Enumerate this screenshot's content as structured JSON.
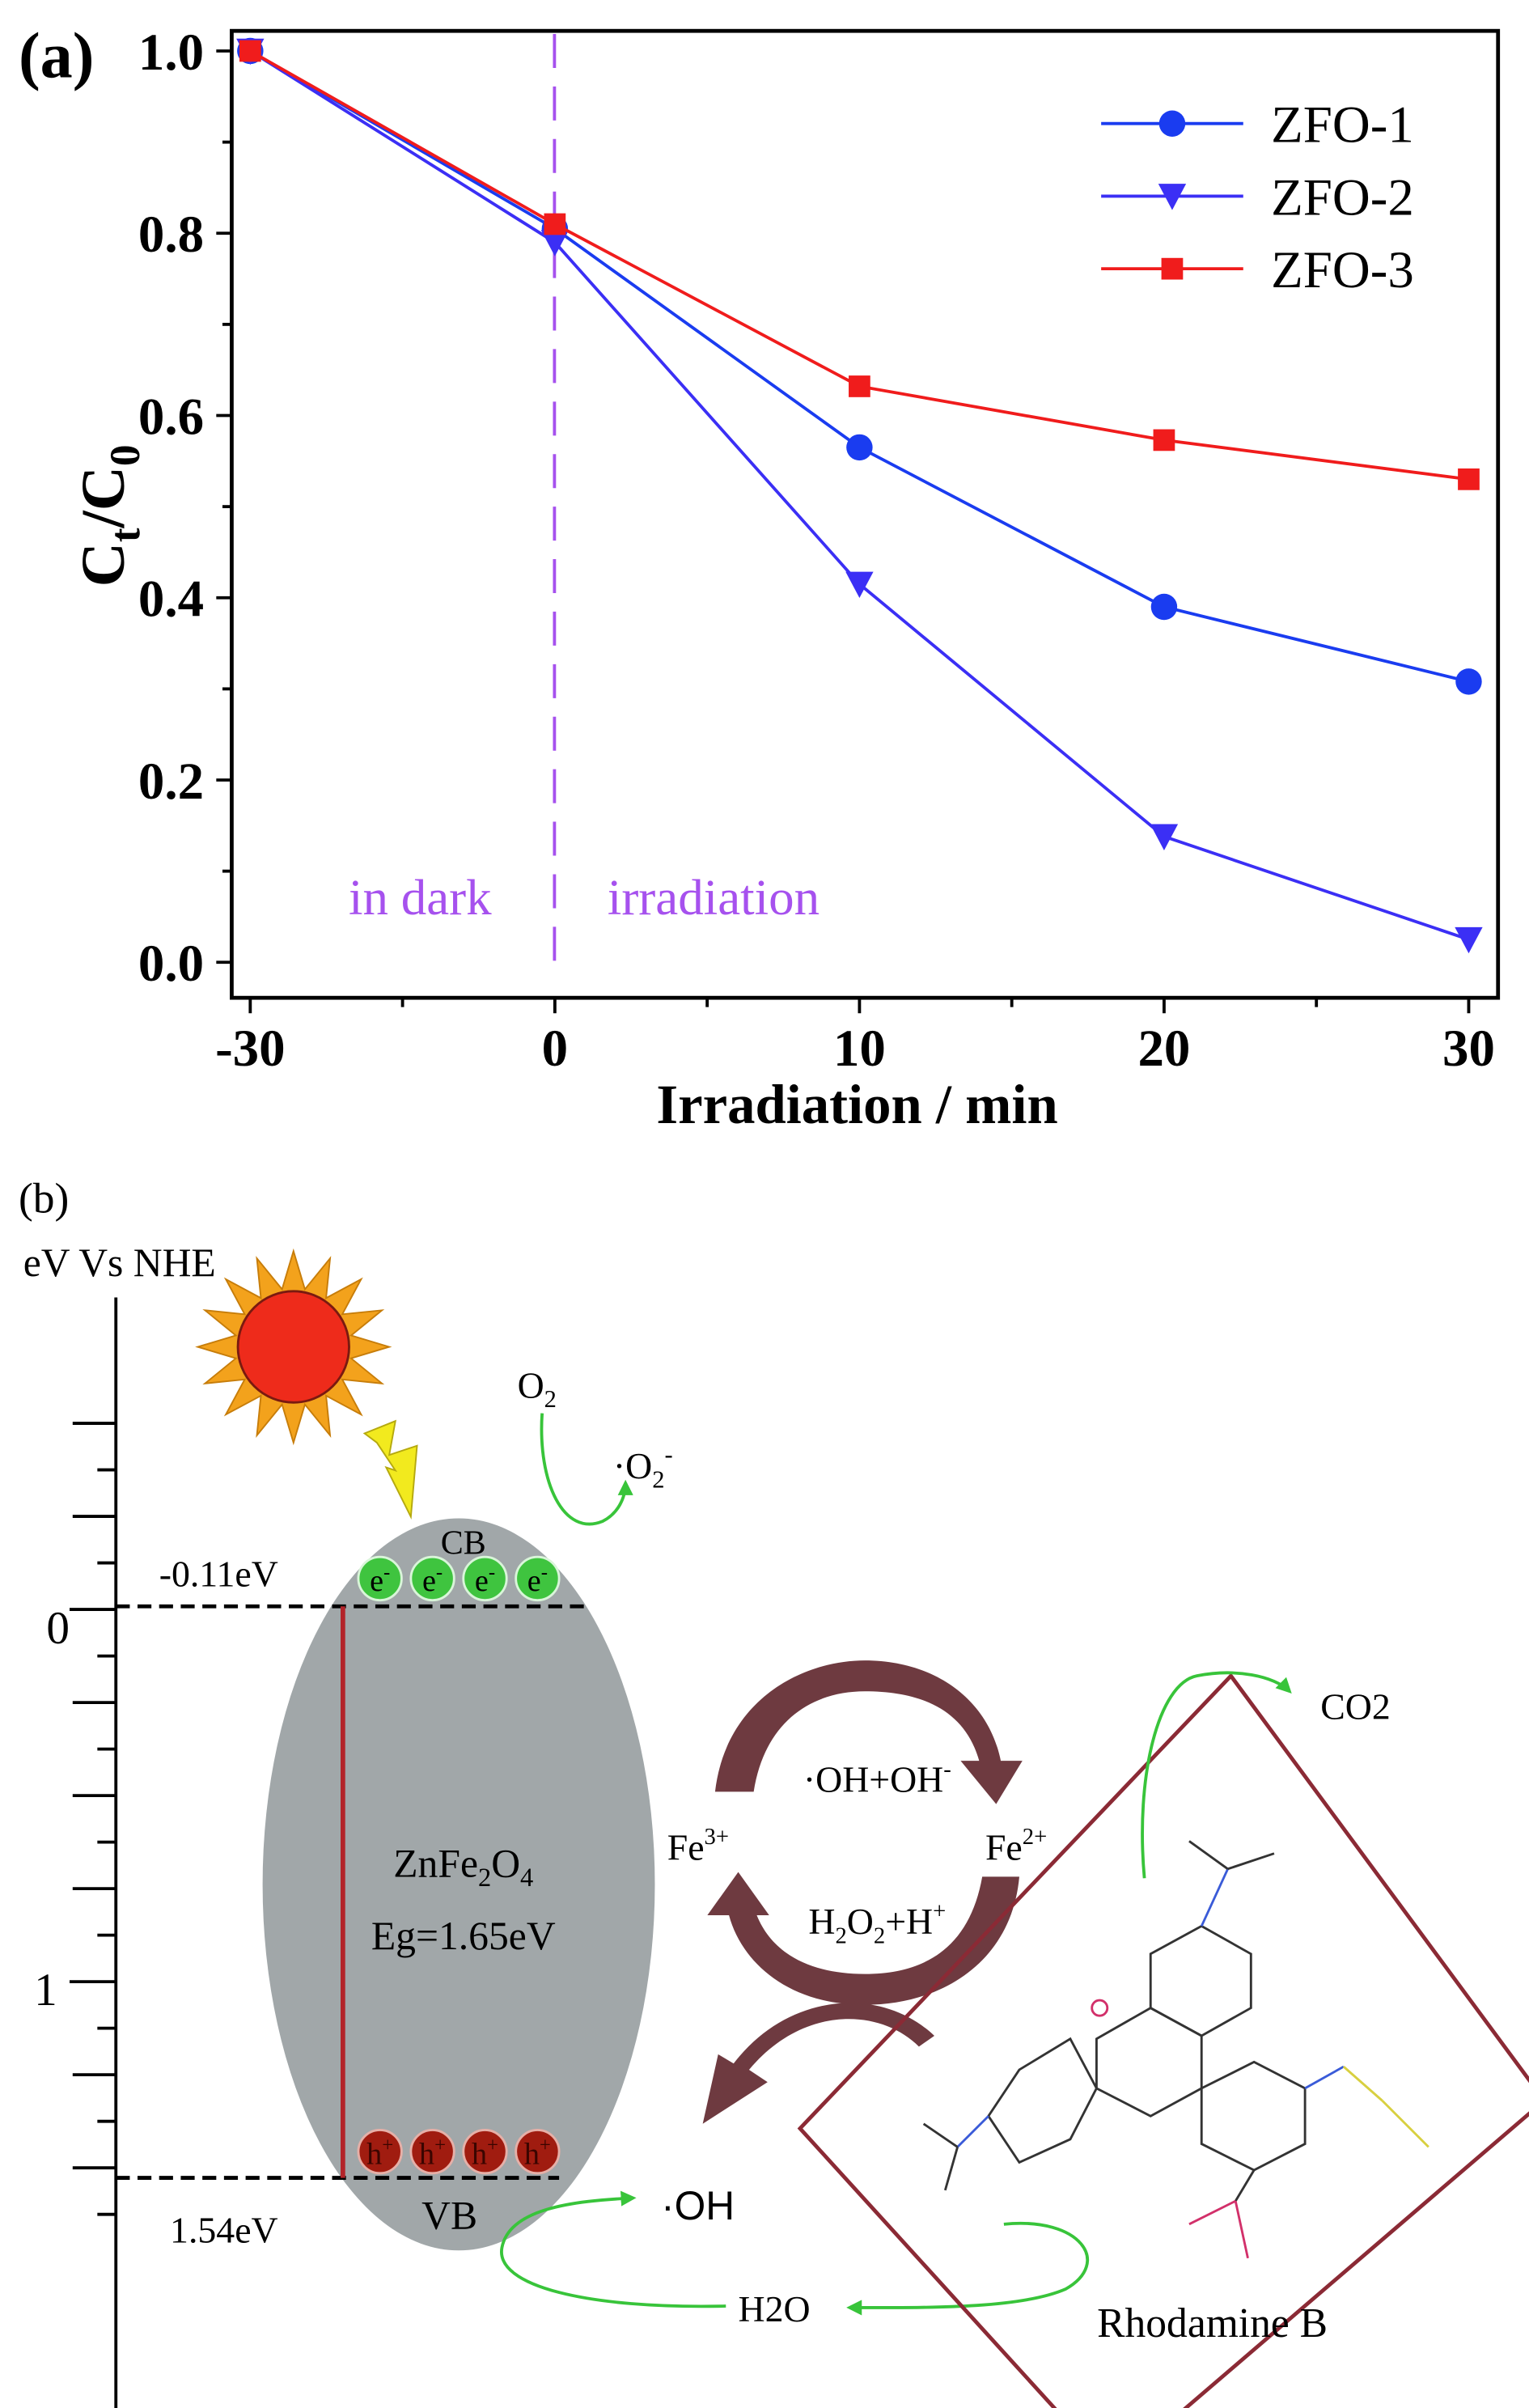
{
  "panel_a_label": "(a)",
  "panel_b_label": "(b)",
  "chart_data": {
    "type": "line",
    "title": "",
    "xlabel": "Irradiation / min",
    "ylabel_main": "C",
    "ylabel_sub1": "t",
    "ylabel_mid": "/C",
    "ylabel_sub2": "0",
    "x": [
      -30,
      0,
      10,
      20,
      30
    ],
    "x_tick_labels": [
      "-30",
      "0",
      "10",
      "20",
      "30"
    ],
    "y_tick_labels": [
      "0.0",
      "0.2",
      "0.4",
      "0.6",
      "0.8",
      "1.0"
    ],
    "ylim": [
      0,
      1.0
    ],
    "grid": false,
    "legend_position": "top-right",
    "series": [
      {
        "name": "ZFO-1",
        "marker": "circle",
        "color": "#1a3cf0",
        "values": [
          1.0,
          0.805,
          0.565,
          0.39,
          0.308
        ]
      },
      {
        "name": "ZFO-2",
        "marker": "triangle-down",
        "color": "#3b2ff5",
        "values": [
          1.0,
          0.79,
          0.415,
          0.138,
          0.025
        ]
      },
      {
        "name": "ZFO-3",
        "marker": "square",
        "color": "#f01c1c",
        "values": [
          1.0,
          0.81,
          0.632,
          0.573,
          0.53
        ]
      }
    ],
    "annotations": {
      "left": "in dark",
      "right": "irradiation",
      "divider_x": 0,
      "color": "#a651ee"
    }
  },
  "diagram": {
    "axis_title": "eV Vs NHE",
    "axis_ticks": [
      "0",
      "1"
    ],
    "cb_level": "-0.11eV",
    "vb_level": "1.54eV",
    "cb": "CB",
    "vb": "VB",
    "electron": "e",
    "electron_sup": "-",
    "hole": "h",
    "hole_sup": "+",
    "material_main": "ZnFe",
    "material_sub1": "2",
    "material_mid": "O",
    "material_sub2": "4",
    "band_gap": "Eg=1.65eV",
    "o2": "O",
    "o2_sub": "2",
    "superoxide": "·O",
    "superoxide_sub": "2",
    "superoxide_sup": "-",
    "cycle_top": "·OH+OH",
    "cycle_top_sup": "-",
    "fe3": "Fe",
    "fe3_sup": "3+",
    "fe2": "Fe",
    "fe2_sup": "2+",
    "cycle_bottom_a": "H",
    "cycle_bottom_sub1": "2",
    "cycle_bottom_b": "O",
    "cycle_bottom_sub2": "2",
    "cycle_bottom_c": "+H",
    "cycle_bottom_sup": "+",
    "hydroxyl": "·OH",
    "water": "H2O",
    "co2": "CO2",
    "dye": "Rhodamine B",
    "colors": {
      "ellipse": "#a1a7a9",
      "gap_line": "#b3242a",
      "electron": "#3fc43f",
      "hole": "#a01c10",
      "cycle_arrow": "#6e3a40",
      "green_arrow": "#38c43a",
      "frame": "#8b2a35",
      "sun": "#ee2b1b",
      "sun_rays": "#f3a21c",
      "bolt": "#f2ea1e"
    }
  }
}
